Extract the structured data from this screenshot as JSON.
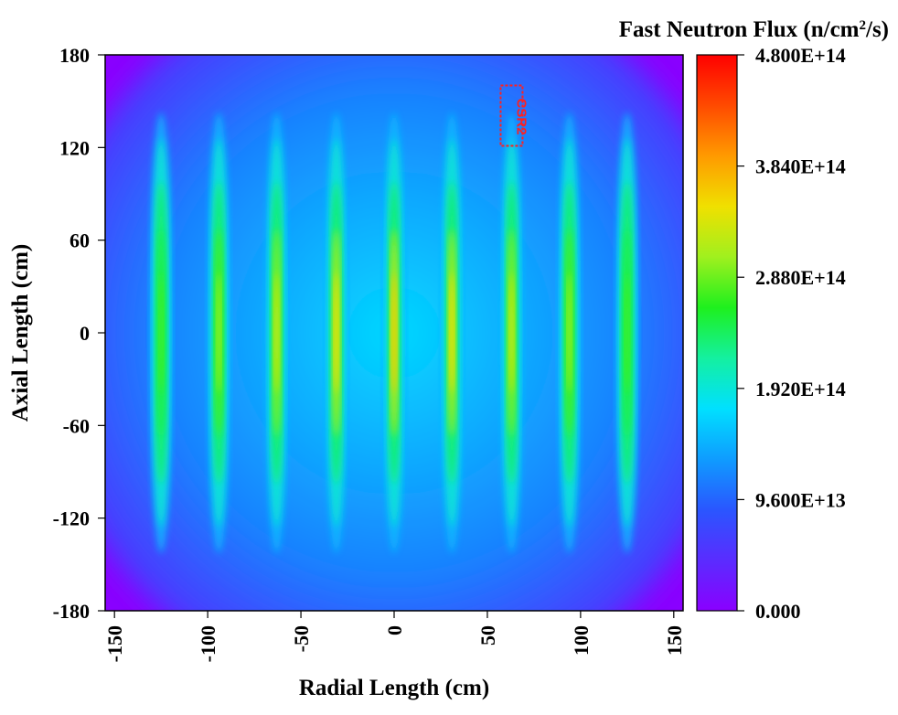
{
  "chart_data": {
    "type": "heatmap",
    "title": "",
    "xlabel": "Radial Length (cm)",
    "ylabel": "Axial Length (cm)",
    "xlim": [
      -155,
      155
    ],
    "ylim": [
      -180,
      180
    ],
    "xticks": [
      -150,
      -100,
      -50,
      0,
      50,
      100,
      150
    ],
    "xtick_labels": [
      "-150",
      "-100",
      "-50",
      "0",
      "50",
      "100",
      "150"
    ],
    "yticks": [
      -180,
      -120,
      -60,
      0,
      60,
      120,
      180
    ],
    "ytick_labels": [
      "-180",
      "-120",
      "-60",
      "0",
      "60",
      "120",
      "180"
    ],
    "colorbar": {
      "title_main": "Fast Neutron Flux (n/cm",
      "title_sup": "2",
      "title_end": "/s)",
      "min": 0,
      "max": 480000000000000.0,
      "tick_values": [
        0,
        96000000000000.0,
        192000000000000.0,
        288000000000000.0,
        384000000000000.0,
        480000000000000.0
      ],
      "tick_labels": [
        "0.000",
        "9.600E+13",
        "1.920E+14",
        "2.880E+14",
        "3.840E+14",
        "4.800E+14"
      ],
      "colors": [
        "#8a00ff",
        "#5a2cff",
        "#2a56ff",
        "#0f9cff",
        "#00e0ff",
        "#14f0a0",
        "#1ef01e",
        "#a0f01e",
        "#f0e000",
        "#ff9a00",
        "#ff4a00",
        "#ff0000"
      ]
    },
    "background_flux": 60000000000000.0,
    "rod_positions_cm": [
      -125,
      -94,
      -63,
      -31,
      0,
      31,
      63,
      94,
      125
    ],
    "rod_peak_flux": [
      275000000000000.0,
      305000000000000.0,
      330000000000000.0,
      350000000000000.0,
      360000000000000.0,
      350000000000000.0,
      330000000000000.0,
      305000000000000.0,
      275000000000000.0
    ],
    "rod_half_length_cm": 140,
    "annotation": {
      "text": "CSR2",
      "x_cm": 63,
      "y_cm": 140,
      "color": "#ff2020"
    }
  }
}
